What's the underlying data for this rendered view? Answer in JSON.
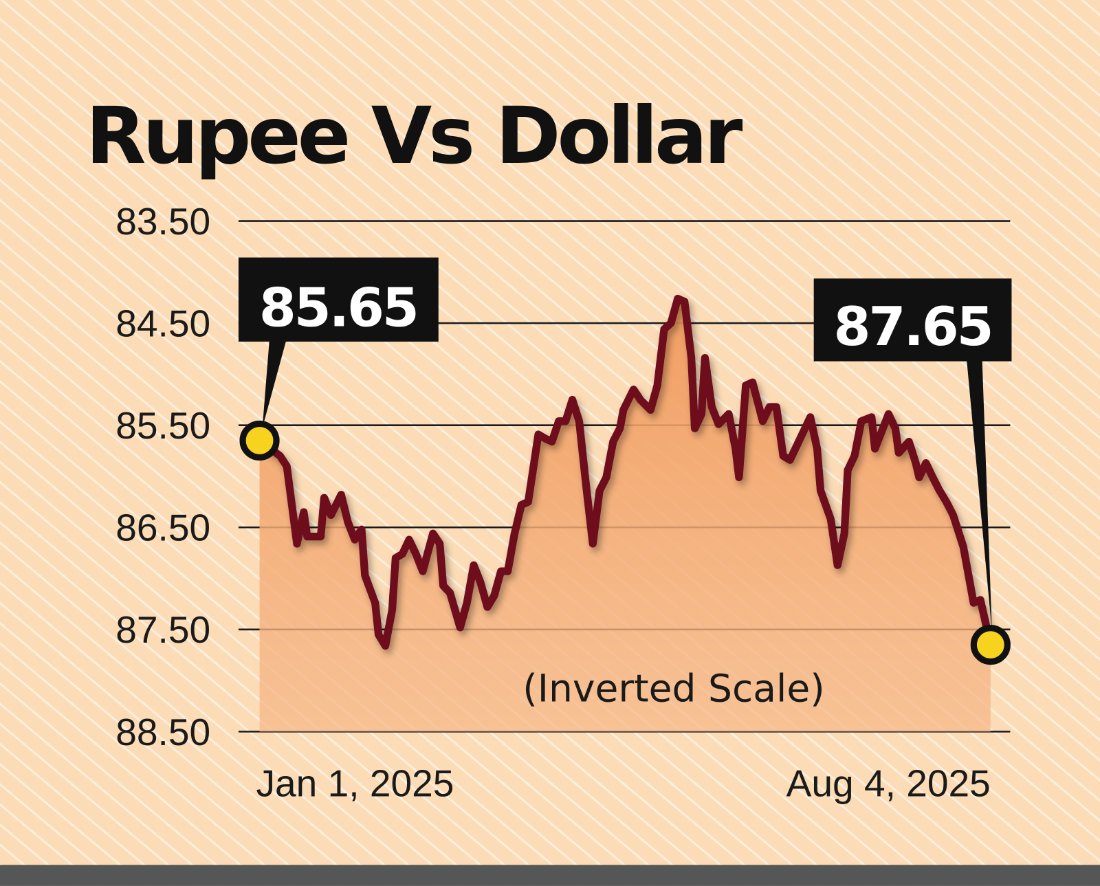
{
  "chart_data": {
    "type": "area",
    "title": "Rupee Vs Dollar",
    "annotation": "(Inverted Scale)",
    "y_inverted": true,
    "ylim": [
      83.5,
      88.5
    ],
    "y_ticks": [
      "83.50",
      "84.50",
      "85.50",
      "86.50",
      "87.50",
      "88.50"
    ],
    "x_ticks": [
      "Jan 1, 2025",
      "Aug 4, 2025"
    ],
    "xlim": [
      "2025-01-01",
      "2025-08-04"
    ],
    "grid": true,
    "callouts": [
      {
        "label": "85.65",
        "date": "2025-01-01",
        "value": 85.65
      },
      {
        "label": "87.65",
        "date": "2025-08-04",
        "value": 87.65
      }
    ],
    "colors": {
      "line": "#6e0a1c",
      "fill": "#f2a572",
      "background": "#fbdcb6",
      "marker": "#f7d21e",
      "callout_bg": "#111111"
    },
    "series": [
      {
        "points": [
          [
            "2025-01-01",
            85.65
          ],
          [
            "2025-01-07",
            85.8
          ],
          [
            "2025-01-09",
            85.9
          ],
          [
            "2025-01-12",
            86.66
          ],
          [
            "2025-01-14",
            86.35
          ],
          [
            "2025-01-15",
            86.59
          ],
          [
            "2025-01-19",
            86.59
          ],
          [
            "2025-01-20",
            86.21
          ],
          [
            "2025-01-22",
            86.38
          ],
          [
            "2025-01-25",
            86.18
          ],
          [
            "2025-01-27",
            86.45
          ],
          [
            "2025-01-29",
            86.62
          ],
          [
            "2025-01-31",
            86.52
          ],
          [
            "2025-02-01",
            86.97
          ],
          [
            "2025-02-04",
            87.24
          ],
          [
            "2025-02-05",
            87.55
          ],
          [
            "2025-02-07",
            87.66
          ],
          [
            "2025-02-09",
            87.31
          ],
          [
            "2025-02-10",
            86.8
          ],
          [
            "2025-02-12",
            86.76
          ],
          [
            "2025-02-14",
            86.62
          ],
          [
            "2025-02-16",
            86.76
          ],
          [
            "2025-02-18",
            86.93
          ],
          [
            "2025-02-21",
            86.56
          ],
          [
            "2025-02-23",
            86.66
          ],
          [
            "2025-02-24",
            87.07
          ],
          [
            "2025-02-26",
            87.14
          ],
          [
            "2025-03-01",
            87.48
          ],
          [
            "2025-03-03",
            87.24
          ],
          [
            "2025-03-05",
            86.87
          ],
          [
            "2025-03-07",
            87.04
          ],
          [
            "2025-03-09",
            87.28
          ],
          [
            "2025-03-11",
            87.17
          ],
          [
            "2025-03-13",
            86.93
          ],
          [
            "2025-03-15",
            86.93
          ],
          [
            "2025-03-17",
            86.56
          ],
          [
            "2025-03-19",
            86.28
          ],
          [
            "2025-03-21",
            86.25
          ],
          [
            "2025-03-24",
            85.59
          ],
          [
            "2025-03-26",
            85.63
          ],
          [
            "2025-03-28",
            85.66
          ],
          [
            "2025-03-30",
            85.46
          ],
          [
            "2025-04-01",
            85.46
          ],
          [
            "2025-04-03",
            85.25
          ],
          [
            "2025-04-05",
            85.46
          ],
          [
            "2025-04-07",
            86.08
          ],
          [
            "2025-04-09",
            86.66
          ],
          [
            "2025-04-11",
            86.14
          ],
          [
            "2025-04-13",
            86.01
          ],
          [
            "2025-04-15",
            85.66
          ],
          [
            "2025-04-17",
            85.53
          ],
          [
            "2025-04-18",
            85.35
          ],
          [
            "2025-04-21",
            85.15
          ],
          [
            "2025-04-23",
            85.25
          ],
          [
            "2025-04-26",
            85.35
          ],
          [
            "2025-04-28",
            85.11
          ],
          [
            "2025-04-30",
            84.56
          ],
          [
            "2025-05-02",
            84.5
          ],
          [
            "2025-05-04",
            84.26
          ],
          [
            "2025-05-06",
            84.29
          ],
          [
            "2025-05-08",
            84.84
          ],
          [
            "2025-05-09",
            85.53
          ],
          [
            "2025-05-11",
            85.39
          ],
          [
            "2025-05-12",
            84.84
          ],
          [
            "2025-05-14",
            85.32
          ],
          [
            "2025-05-16",
            85.49
          ],
          [
            "2025-05-19",
            85.39
          ],
          [
            "2025-05-21",
            85.73
          ],
          [
            "2025-05-22",
            86.01
          ],
          [
            "2025-05-24",
            85.11
          ],
          [
            "2025-05-26",
            85.08
          ],
          [
            "2025-05-29",
            85.46
          ],
          [
            "2025-05-31",
            85.32
          ],
          [
            "2025-06-02",
            85.32
          ],
          [
            "2025-06-04",
            85.8
          ],
          [
            "2025-06-06",
            85.84
          ],
          [
            "2025-06-09",
            85.63
          ],
          [
            "2025-06-12",
            85.42
          ],
          [
            "2025-06-14",
            85.73
          ],
          [
            "2025-06-15",
            86.14
          ],
          [
            "2025-06-18",
            86.42
          ],
          [
            "2025-06-20",
            86.87
          ],
          [
            "2025-06-22",
            86.56
          ],
          [
            "2025-06-23",
            85.94
          ],
          [
            "2025-06-25",
            85.8
          ],
          [
            "2025-06-27",
            85.46
          ],
          [
            "2025-06-30",
            85.42
          ],
          [
            "2025-07-01",
            85.73
          ],
          [
            "2025-07-03",
            85.56
          ],
          [
            "2025-07-05",
            85.39
          ],
          [
            "2025-07-07",
            85.53
          ],
          [
            "2025-07-08",
            85.77
          ],
          [
            "2025-07-11",
            85.66
          ],
          [
            "2025-07-13",
            85.87
          ],
          [
            "2025-07-14",
            86.01
          ],
          [
            "2025-07-16",
            85.87
          ],
          [
            "2025-07-18",
            86.01
          ],
          [
            "2025-07-20",
            86.14
          ],
          [
            "2025-07-22",
            86.25
          ],
          [
            "2025-07-24",
            86.38
          ],
          [
            "2025-07-27",
            86.69
          ],
          [
            "2025-07-30",
            87.24
          ],
          [
            "2025-08-01",
            87.21
          ],
          [
            "2025-08-04",
            87.65
          ]
        ]
      }
    ]
  }
}
